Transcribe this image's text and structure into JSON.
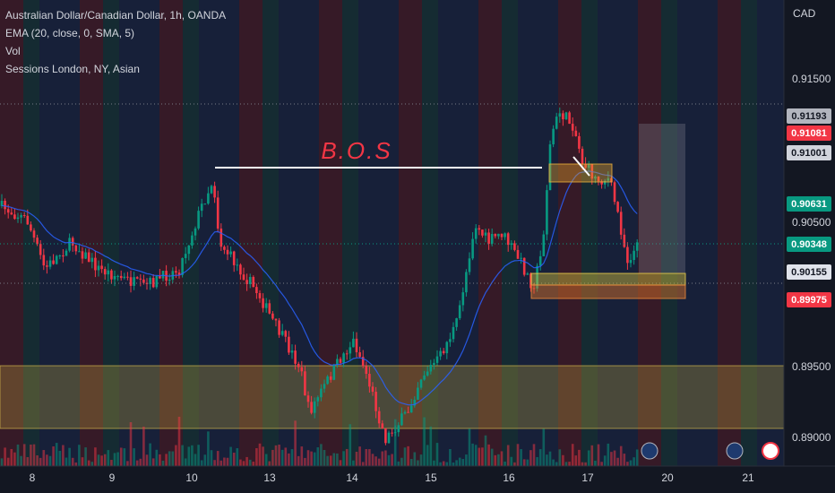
{
  "header": {
    "symbol": "Australian Dollar/Canadian Dollar, 1h, OANDA",
    "ema": "EMA (20, close, 0, SMA, 5)",
    "volume": "Vol",
    "sessions": "Sessions London, NY, Asian"
  },
  "price_axis": {
    "currency": "CAD",
    "labels": [
      "0.91500",
      "0.90500",
      "0.89500",
      "0.89000"
    ]
  },
  "price_tags": [
    "0.91193",
    "0.91081",
    "0.91001",
    "0.90631",
    "0.90348",
    "0.90155",
    "0.89975"
  ],
  "time_axis": {
    "labels": [
      "8",
      "9",
      "10",
      "13",
      "14",
      "15",
      "16",
      "17",
      "20",
      "21"
    ]
  },
  "annotation": "B.O.S"
}
